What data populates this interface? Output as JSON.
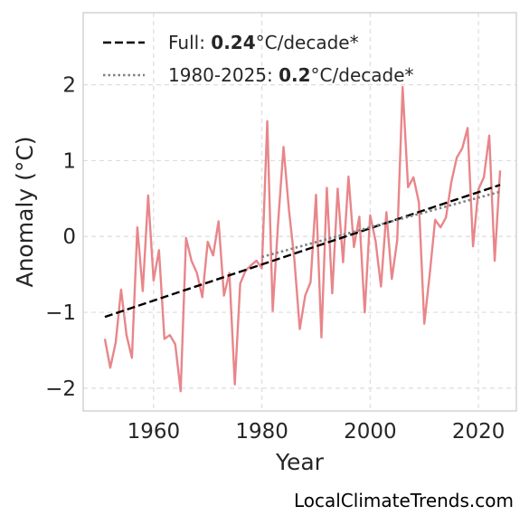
{
  "chart_data": {
    "type": "line",
    "xlabel": "Year",
    "ylabel": "Anomaly (°C)",
    "xlim": [
      1947,
      2027
    ],
    "ylim": [
      -2.3,
      2.95
    ],
    "xticks": [
      1960,
      1980,
      2000,
      2020
    ],
    "yticks": [
      -2,
      -1,
      0,
      1,
      2
    ],
    "ytick_labels": [
      "−2",
      "−1",
      "0",
      "1",
      "2"
    ],
    "grid": true,
    "legend_position": "top-left",
    "series": [
      {
        "type": "line",
        "color": "#e8868a",
        "x": [
          1951,
          1952,
          1953,
          1954,
          1955,
          1956,
          1957,
          1958,
          1959,
          1960,
          1961,
          1962,
          1963,
          1964,
          1965,
          1966,
          1967,
          1968,
          1969,
          1970,
          1971,
          1972,
          1973,
          1974,
          1975,
          1976,
          1977,
          1978,
          1979,
          1980,
          1981,
          1982,
          1983,
          1984,
          1985,
          1986,
          1987,
          1988,
          1989,
          1990,
          1991,
          1992,
          1993,
          1994,
          1995,
          1996,
          1997,
          1998,
          1999,
          2000,
          2001,
          2002,
          2003,
          2004,
          2005,
          2006,
          2007,
          2008,
          2009,
          2010,
          2011,
          2012,
          2013,
          2014,
          2015,
          2016,
          2017,
          2018,
          2019,
          2020,
          2021,
          2022,
          2023,
          2024
        ],
        "y": [
          -1.35,
          -1.73,
          -1.4,
          -0.7,
          -1.3,
          -1.6,
          0.12,
          -0.72,
          0.54,
          -0.58,
          -0.18,
          -1.35,
          -1.3,
          -1.42,
          -2.04,
          -0.02,
          -0.32,
          -0.48,
          -0.8,
          -0.07,
          -0.25,
          0.2,
          -0.78,
          -0.48,
          -1.95,
          -0.62,
          -0.45,
          -0.38,
          -0.32,
          -0.42,
          1.52,
          -0.98,
          0.18,
          1.18,
          0.35,
          -0.3,
          -1.22,
          -0.78,
          -0.6,
          0.55,
          -1.33,
          0.64,
          -0.75,
          0.63,
          -0.34,
          0.79,
          -0.14,
          0.26,
          -1.0,
          0.28,
          -0.06,
          -0.66,
          0.32,
          -0.56,
          -0.05,
          1.97,
          0.65,
          0.78,
          0.45,
          -1.15,
          -0.5,
          0.22,
          0.12,
          0.25,
          0.72,
          1.04,
          1.16,
          1.43,
          -0.13,
          0.62,
          0.78,
          1.33,
          -0.32,
          0.87
        ]
      },
      {
        "type": "trend",
        "color": "#000000",
        "style": "dashed",
        "x": [
          1951,
          2024
        ],
        "y": [
          -1.06,
          0.68
        ]
      },
      {
        "type": "trend",
        "color": "#808080",
        "style": "dotted",
        "x": [
          1980,
          2024
        ],
        "y": [
          -0.27,
          0.59
        ]
      }
    ],
    "legend": [
      {
        "prefix": "Full: ",
        "value": "0.24",
        "suffix": "°C/decade*",
        "style": "dashed",
        "color": "#000000"
      },
      {
        "prefix": "1980-2025: ",
        "value": "0.2",
        "suffix": "°C/decade*",
        "style": "dotted",
        "color": "#808080"
      }
    ]
  },
  "credit": "LocalClimateTrends.com"
}
